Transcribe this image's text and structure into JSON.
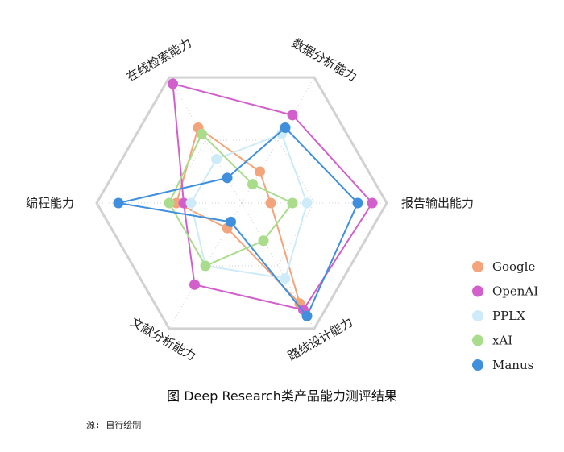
{
  "caption": "图 Deep Research类产品能力测评结果",
  "source": "源: 自行绘制",
  "chart_data": {
    "type": "radar",
    "title": "图 Deep Research类产品能力测评结果",
    "axes": [
      "数据分析能力",
      "报告输出能力",
      "路线设计能力",
      "文献分析能力",
      "编程能力",
      "在线检索能力"
    ],
    "range": [
      0,
      10
    ],
    "grid": true,
    "legend_position": "right",
    "series": [
      {
        "name": "Google",
        "color": "#F4A47A",
        "values": [
          2.5,
          2.0,
          8.0,
          2.0,
          4.5,
          6.0
        ]
      },
      {
        "name": "OpenAI",
        "color": "#D35FCC",
        "values": [
          7.0,
          9.0,
          8.5,
          6.5,
          4.0,
          9.5
        ]
      },
      {
        "name": "PPLX",
        "color": "#CDEBF8",
        "values": [
          5.5,
          4.5,
          6.0,
          5.0,
          3.5,
          3.5
        ]
      },
      {
        "name": "xAI",
        "color": "#A9DD8C",
        "values": [
          1.5,
          3.5,
          3.0,
          5.0,
          5.0,
          5.5
        ]
      },
      {
        "name": "Manus",
        "color": "#3F8FDD",
        "values": [
          6.0,
          8.0,
          9.0,
          1.5,
          8.5,
          2.0
        ]
      }
    ]
  }
}
